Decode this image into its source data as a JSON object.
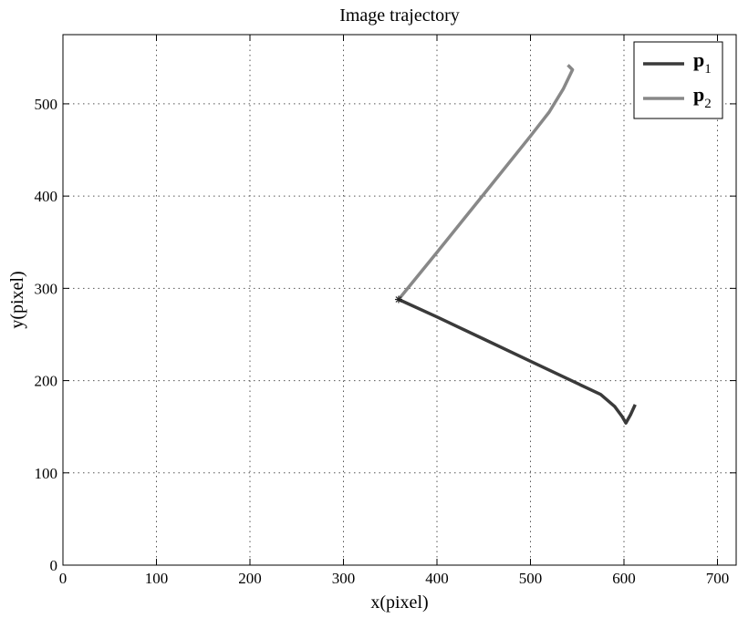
{
  "chart_data": {
    "type": "line",
    "title": "Image trajectory",
    "xlabel": "x(pixel)",
    "ylabel": "y(pixel)",
    "xlim": [
      0,
      720
    ],
    "ylim": [
      0,
      575
    ],
    "xticks": [
      0,
      100,
      200,
      300,
      400,
      500,
      600,
      700
    ],
    "yticks": [
      0,
      100,
      200,
      300,
      400,
      500
    ],
    "grid": true,
    "legend_position": "top-right",
    "start_marker": {
      "x": 359,
      "y": 288,
      "symbol": "*"
    },
    "series": [
      {
        "name": "p",
        "subscript": "1",
        "color": "#3a3a3a",
        "points": [
          [
            359,
            288
          ],
          [
            400,
            269
          ],
          [
            450,
            245
          ],
          [
            500,
            221
          ],
          [
            550,
            197
          ],
          [
            575,
            185
          ],
          [
            590,
            172
          ],
          [
            598,
            161
          ],
          [
            602,
            154
          ],
          [
            607,
            163
          ],
          [
            612,
            174
          ]
        ]
      },
      {
        "name": "p",
        "subscript": "2",
        "color": "#888888",
        "points": [
          [
            359,
            288
          ],
          [
            400,
            339
          ],
          [
            450,
            402
          ],
          [
            500,
            465
          ],
          [
            520,
            491
          ],
          [
            535,
            516
          ],
          [
            545,
            537
          ],
          [
            540,
            542
          ]
        ]
      }
    ]
  }
}
